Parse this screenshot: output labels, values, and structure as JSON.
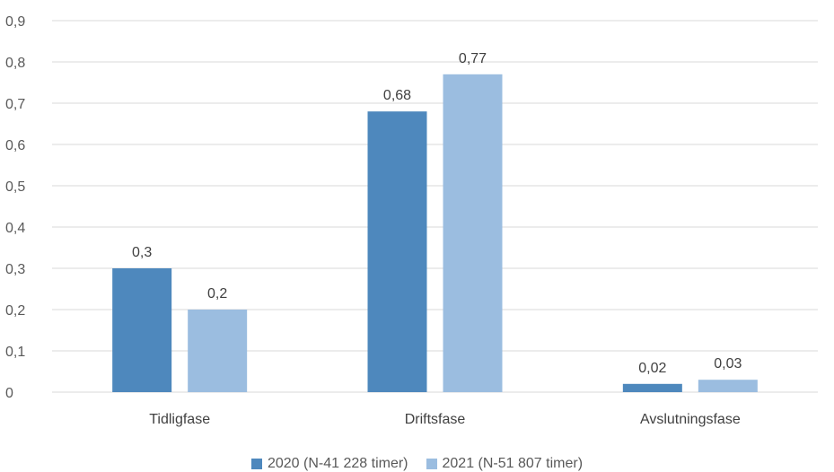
{
  "chart_data": {
    "type": "bar",
    "categories": [
      "Tidligfase",
      "Driftsfase",
      "Avslutningsfase"
    ],
    "series": [
      {
        "name": "2020 (N-41 228 timer)",
        "values": [
          0.3,
          0.68,
          0.02
        ],
        "labels": [
          "0,3",
          "0,68",
          "0,02"
        ],
        "color": "#4E88BD"
      },
      {
        "name": "2021 (N-51 807 timer)",
        "values": [
          0.2,
          0.77,
          0.03
        ],
        "labels": [
          "0,2",
          "0,77",
          "0,03"
        ],
        "color": "#9BBDE0"
      }
    ],
    "y_ticks": [
      0,
      0.1,
      0.2,
      0.3,
      0.4,
      0.5,
      0.6,
      0.7,
      0.8,
      0.9
    ],
    "y_tick_labels": [
      "0",
      "0,1",
      "0,2",
      "0,3",
      "0,4",
      "0,5",
      "0,6",
      "0,7",
      "0,8",
      "0,9"
    ],
    "ylim": [
      0,
      0.9
    ],
    "grid": true,
    "legend_position": "bottom",
    "title": "",
    "xlabel": "",
    "ylabel": ""
  }
}
